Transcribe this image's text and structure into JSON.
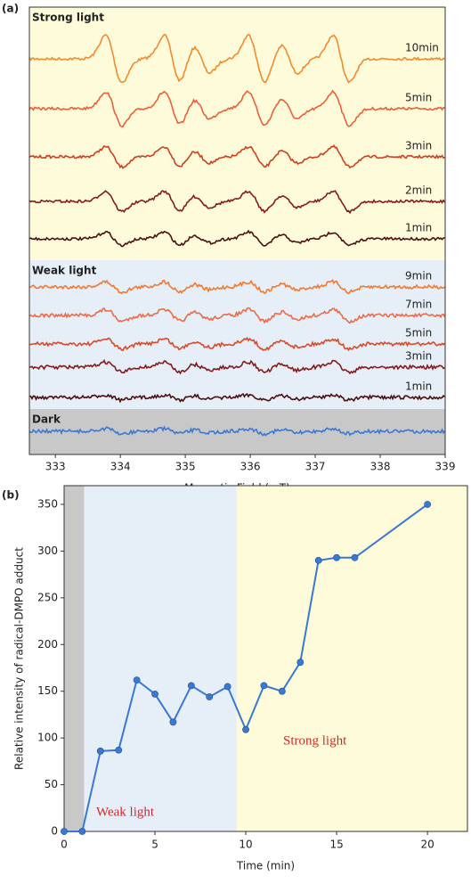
{
  "chart_data": [
    {
      "type": "spectra",
      "panel_label": "(a)",
      "x_label": "Magnetic Field (mT)",
      "xlim": [
        332.6,
        339
      ],
      "xticks": [
        333,
        334,
        335,
        336,
        337,
        338,
        339
      ],
      "groups": [
        {
          "label": "Strong light",
          "color": "#fdfbd9",
          "traces": [
            {
              "name": "10min",
              "color": "#f28a2e"
            },
            {
              "name": "5min",
              "color": "#e8613a"
            },
            {
              "name": "3min",
              "color": "#cf3f1f"
            },
            {
              "name": "2min",
              "color": "#861b1b"
            },
            {
              "name": "1min",
              "color": "#4b1010"
            }
          ]
        },
        {
          "label": "Weak light",
          "color": "#e6eef8",
          "traces": [
            {
              "name": "9min",
              "color": "#f07a30"
            },
            {
              "name": "7min",
              "color": "#ec6a44"
            },
            {
              "name": "5min",
              "color": "#d84a28"
            },
            {
              "name": "3min",
              "color": "#861b1b"
            },
            {
              "name": "1min",
              "color": "#4b1010"
            }
          ]
        },
        {
          "label": "Dark",
          "color": "#c8c8c8",
          "traces": [
            {
              "name": null,
              "color": "#3a78d4"
            }
          ]
        }
      ]
    },
    {
      "type": "line",
      "panel_label": "(b)",
      "x_label": "Time (min)",
      "y_label": "Relative intensity of radical-DMPO adduct",
      "x": [
        0,
        1,
        2,
        3,
        4,
        5,
        6,
        7,
        8,
        9,
        10,
        11,
        12,
        13,
        14,
        15,
        16,
        20
      ],
      "values": [
        0,
        0,
        86,
        87,
        162,
        147,
        117,
        156,
        144,
        155,
        109,
        156,
        150,
        181,
        290,
        293,
        293,
        350
      ],
      "color": "#3a78d4",
      "xlim": [
        0,
        22.2
      ],
      "ylim": [
        0,
        370
      ],
      "xticks": [
        0,
        5,
        10,
        15,
        20
      ],
      "yticks": [
        0,
        50,
        100,
        150,
        200,
        250,
        300,
        350
      ],
      "regions": [
        {
          "from": 0,
          "to": 1.1,
          "color": "#c8c8c8"
        },
        {
          "from": 1.1,
          "to": 9.5,
          "color": "#e6eef8",
          "label": "Weak light"
        },
        {
          "from": 9.5,
          "to": 22.2,
          "color": "#fdfbd9",
          "label": "Strong light"
        }
      ],
      "annotation_color": "#d02a2a"
    }
  ]
}
